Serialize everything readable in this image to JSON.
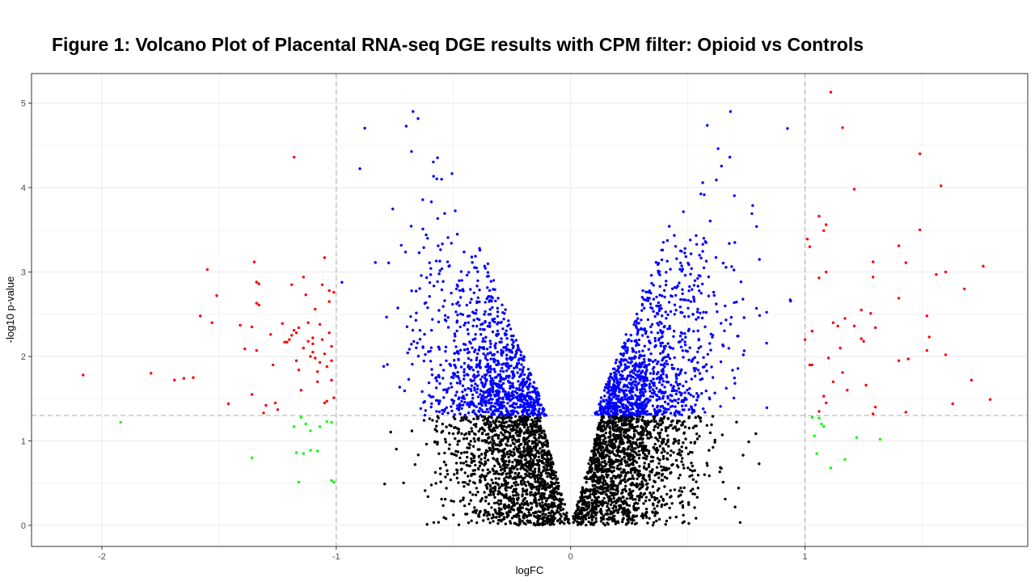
{
  "chart_data": {
    "type": "scatter",
    "title": "Figure 1: Volcano Plot of Placental RNA-seq DGE results with CPM filter: Opioid vs Controls",
    "xlabel": "logFC",
    "ylabel": "-log10 p-value",
    "xlim": [
      -2.3,
      1.95
    ],
    "ylim": [
      -0.25,
      5.35
    ],
    "x_ticks": [
      -2,
      -1,
      0,
      1
    ],
    "y_ticks": [
      0,
      1,
      2,
      3,
      4,
      5
    ],
    "grid": true,
    "legend": "none",
    "thresholds": {
      "logFC": [
        -1,
        1
      ],
      "neg_log10_p": 1.3
    },
    "colors": {
      "not_significant": "#000000",
      "significant_p": "#0000ff",
      "large_fc_significant": "#ff0000",
      "large_fc_not_significant": "#00ff00",
      "threshold_line": "#b3b3b3",
      "grid": "#ebebeb",
      "panel_border": "#333333"
    },
    "series": [
      {
        "points": [
          [
            -1.18,
            4.36
          ],
          [
            -2.08,
            1.78
          ],
          [
            -1.79,
            1.8
          ],
          [
            -1.69,
            1.72
          ],
          [
            -1.65,
            1.74
          ],
          [
            -1.61,
            1.75
          ],
          [
            -1.55,
            3.03
          ],
          [
            -1.51,
            2.72
          ],
          [
            -1.58,
            2.48
          ],
          [
            -1.53,
            2.4
          ],
          [
            -1.46,
            1.44
          ],
          [
            -1.41,
            2.37
          ],
          [
            -1.39,
            2.09
          ],
          [
            -1.36,
            2.35
          ],
          [
            -1.35,
            3.12
          ],
          [
            -1.34,
            2.88
          ],
          [
            -1.33,
            2.86
          ],
          [
            -1.34,
            2.63
          ],
          [
            -1.33,
            2.61
          ],
          [
            -1.34,
            2.07
          ],
          [
            -1.36,
            1.55
          ],
          [
            -1.3,
            1.42
          ],
          [
            -1.31,
            1.33
          ],
          [
            -1.28,
            2.26
          ],
          [
            -1.27,
            1.9
          ],
          [
            -1.26,
            1.45
          ],
          [
            -1.25,
            1.37
          ],
          [
            -1.23,
            2.39
          ],
          [
            -1.22,
            2.17
          ],
          [
            -1.21,
            2.17
          ],
          [
            -1.2,
            2.2
          ],
          [
            -1.19,
            2.85
          ],
          [
            -1.19,
            2.25
          ],
          [
            -1.18,
            2.31
          ],
          [
            -1.17,
            2.28
          ],
          [
            -1.16,
            2.34
          ],
          [
            -1.17,
            1.95
          ],
          [
            -1.16,
            1.84
          ],
          [
            -1.15,
            1.6
          ],
          [
            -1.14,
            2.94
          ],
          [
            -1.13,
            2.73
          ],
          [
            -1.12,
            2.18
          ],
          [
            -1.11,
            2.0
          ],
          [
            -1.1,
            2.22
          ],
          [
            -1.1,
            2.15
          ],
          [
            -1.1,
            2.05
          ],
          [
            -1.09,
            1.98
          ],
          [
            -1.08,
            1.82
          ],
          [
            -1.08,
            1.7
          ],
          [
            -1.07,
            2.38
          ],
          [
            -1.07,
            1.93
          ],
          [
            -1.06,
            2.85
          ],
          [
            -1.06,
            2.2
          ],
          [
            -1.05,
            3.17
          ],
          [
            -1.05,
            2.03
          ],
          [
            -1.04,
            1.88
          ],
          [
            -1.04,
            1.47
          ],
          [
            -1.03,
            2.78
          ],
          [
            -1.03,
            2.65
          ],
          [
            -1.03,
            2.28
          ],
          [
            -1.02,
            2.12
          ],
          [
            -1.02,
            1.95
          ],
          [
            -1.02,
            1.72
          ],
          [
            -1.01,
            1.51
          ],
          [
            -1.01,
            2.76
          ],
          [
            -1.09,
            2.56
          ],
          [
            -1.12,
            2.4
          ],
          [
            -1.14,
            2.1
          ],
          [
            -1.05,
            1.45
          ],
          [
            1.11,
            5.13
          ],
          [
            1.16,
            4.71
          ],
          [
            1.49,
            4.4
          ],
          [
            1.58,
            4.02
          ],
          [
            1.21,
            3.98
          ],
          [
            1.06,
            3.66
          ],
          [
            1.09,
            3.56
          ],
          [
            1.08,
            3.49
          ],
          [
            1.49,
            3.5
          ],
          [
            1.4,
            3.31
          ],
          [
            1.01,
            3.39
          ],
          [
            1.02,
            3.3
          ],
          [
            1.43,
            3.11
          ],
          [
            1.29,
            3.12
          ],
          [
            1.76,
            3.07
          ],
          [
            1.09,
            3.0
          ],
          [
            1.6,
            3.0
          ],
          [
            1.56,
            2.97
          ],
          [
            1.06,
            2.93
          ],
          [
            1.29,
            2.94
          ],
          [
            1.68,
            2.8
          ],
          [
            1.4,
            2.69
          ],
          [
            1.28,
            2.51
          ],
          [
            1.24,
            2.55
          ],
          [
            1.52,
            2.48
          ],
          [
            1.17,
            2.45
          ],
          [
            1.12,
            2.4
          ],
          [
            1.14,
            2.36
          ],
          [
            1.3,
            2.34
          ],
          [
            1.21,
            2.36
          ],
          [
            1.03,
            2.3
          ],
          [
            1.53,
            2.23
          ],
          [
            1.24,
            2.21
          ],
          [
            1.25,
            2.18
          ],
          [
            1.0,
            2.2
          ],
          [
            1.15,
            2.1
          ],
          [
            1.52,
            2.07
          ],
          [
            1.6,
            2.02
          ],
          [
            1.1,
            1.98
          ],
          [
            1.4,
            1.95
          ],
          [
            1.44,
            1.97
          ],
          [
            1.02,
            1.9
          ],
          [
            1.03,
            1.9
          ],
          [
            1.16,
            1.81
          ],
          [
            1.71,
            1.72
          ],
          [
            1.12,
            1.7
          ],
          [
            1.26,
            1.66
          ],
          [
            1.18,
            1.6
          ],
          [
            1.08,
            1.53
          ],
          [
            1.79,
            1.49
          ],
          [
            1.63,
            1.44
          ],
          [
            1.09,
            1.45
          ],
          [
            1.3,
            1.4
          ],
          [
            1.29,
            1.32
          ],
          [
            1.06,
            1.35
          ],
          [
            1.43,
            1.34
          ]
        ]
      },
      {
        "points": [
          [
            -1.92,
            1.22
          ],
          [
            -1.36,
            0.8
          ],
          [
            -1.18,
            1.17
          ],
          [
            -1.15,
            1.28
          ],
          [
            -1.13,
            1.2
          ],
          [
            -1.11,
            1.12
          ],
          [
            -1.07,
            1.17
          ],
          [
            -1.17,
            0.86
          ],
          [
            -1.14,
            0.85
          ],
          [
            -1.11,
            0.89
          ],
          [
            -1.08,
            0.88
          ],
          [
            -1.04,
            1.23
          ],
          [
            -1.02,
            1.22
          ],
          [
            -1.16,
            0.51
          ],
          [
            -1.01,
            0.51
          ],
          [
            -1.02,
            0.53
          ],
          [
            1.03,
            1.28
          ],
          [
            1.06,
            1.27
          ],
          [
            1.08,
            1.17
          ],
          [
            1.07,
            1.2
          ],
          [
            1.04,
            1.06
          ],
          [
            1.05,
            0.85
          ],
          [
            1.11,
            0.68
          ],
          [
            1.17,
            0.78
          ],
          [
            1.22,
            1.04
          ],
          [
            1.32,
            1.02
          ]
        ]
      }
    ],
    "generated_series": [
      {
        "n_points": 3000,
        "logFC_range": [
          -2.0,
          2.0
        ],
        "neg_log10_p_range": [
          0.0,
          1.3
        ]
      },
      {
        "n_points": 2100,
        "logFC_range": [
          -1.0,
          1.0
        ],
        "neg_log10_p_range": [
          1.3,
          4.9
        ]
      }
    ]
  }
}
